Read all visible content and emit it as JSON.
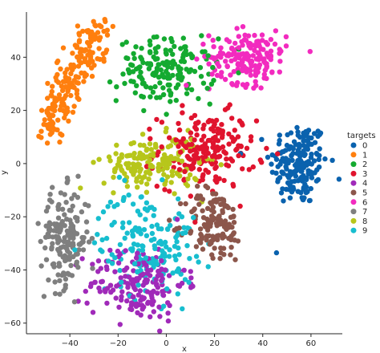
{
  "chart_data": {
    "type": "scatter",
    "xlabel": "x",
    "ylabel": "y",
    "xlim": [
      -58,
      73
    ],
    "ylim": [
      -64,
      57
    ],
    "x_ticks": [
      -40,
      -20,
      0,
      20,
      40,
      60
    ],
    "y_ticks": [
      -60,
      -40,
      -20,
      0,
      20,
      40
    ],
    "grid": false,
    "legend": {
      "title": "targets",
      "placement": "right",
      "entries": [
        "0",
        "1",
        "2",
        "3",
        "4",
        "5",
        "6",
        "7",
        "8",
        "9"
      ]
    },
    "series": [
      {
        "name": "0",
        "color": "#0a62ae",
        "cx": 55,
        "cy": 0,
        "sx": 6,
        "sy": 8,
        "n": 180
      },
      {
        "name": "1",
        "color": "#ff7f0e",
        "cx": -38,
        "cy": 28,
        "sx": 6,
        "sy": 12,
        "n": 200
      },
      {
        "name": "2",
        "color": "#14aa30",
        "cx": 0,
        "cy": 35,
        "sx": 10,
        "sy": 6,
        "n": 170
      },
      {
        "name": "3",
        "color": "#e0142e",
        "cx": 17,
        "cy": 5,
        "sx": 10,
        "sy": 7,
        "n": 190
      },
      {
        "name": "4",
        "color": "#a02ab9",
        "cx": -12,
        "cy": -45,
        "sx": 10,
        "sy": 7,
        "n": 180
      },
      {
        "name": "5",
        "color": "#8c564b",
        "cx": 20,
        "cy": -23,
        "sx": 6,
        "sy": 7,
        "n": 130
      },
      {
        "name": "6",
        "color": "#f22bbf",
        "cx": 34,
        "cy": 40,
        "sx": 8,
        "sy": 5,
        "n": 180
      },
      {
        "name": "7",
        "color": "#7f7f7f",
        "cx": -42,
        "cy": -28,
        "sx": 5,
        "sy": 9,
        "n": 170
      },
      {
        "name": "8",
        "color": "#b7c61b",
        "cx": -6,
        "cy": 0,
        "sx": 10,
        "sy": 5,
        "n": 170
      },
      {
        "name": "9",
        "color": "#17becf",
        "cx": -8,
        "cy": -30,
        "sx": 10,
        "sy": 10,
        "n": 170
      }
    ]
  }
}
